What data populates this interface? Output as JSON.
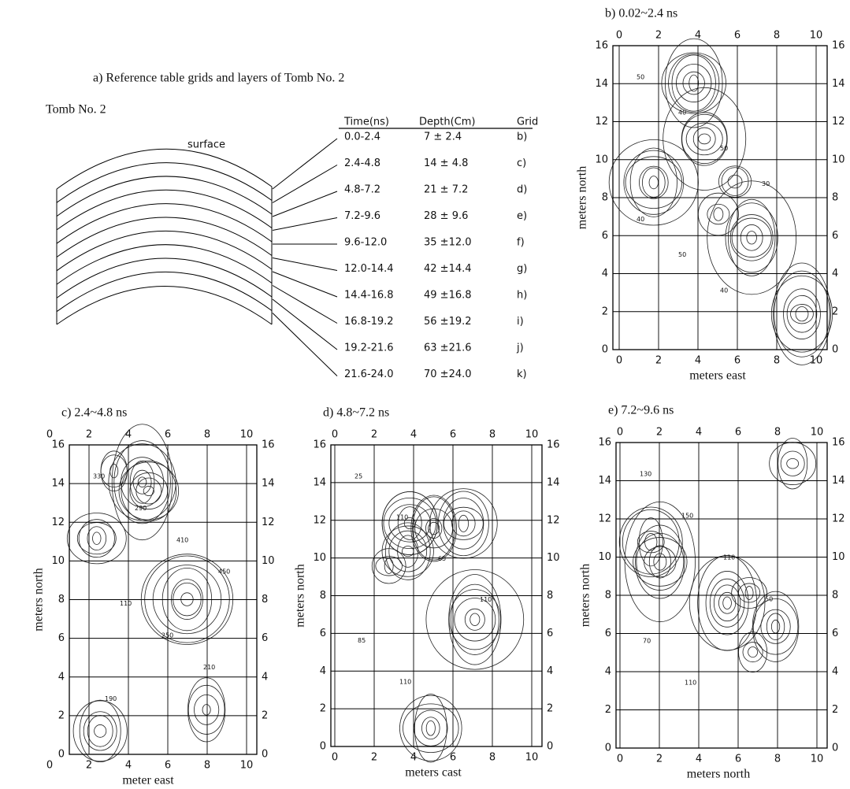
{
  "panel_a": {
    "title": "a) Reference table grids and layers of Tomb No. 2",
    "subtitle": "Tomb No. 2",
    "surface_label": "surface",
    "table": {
      "header": [
        "Time(ns)",
        "Depth(Cm)",
        "Grid"
      ],
      "rows": [
        [
          "0.0-2.4",
          "7 ± 2.4",
          "b)"
        ],
        [
          "2.4-4.8",
          "14 ± 4.8",
          "c)"
        ],
        [
          "4.8-7.2",
          "21 ± 7.2",
          "d)"
        ],
        [
          "7.2-9.6",
          "28 ± 9.6",
          "e)"
        ],
        [
          "9.6-12.0",
          "35 ±12.0",
          "f)"
        ],
        [
          "12.0-14.4",
          "42 ±14.4",
          "g)"
        ],
        [
          "14.4-16.8",
          "49 ±16.8",
          "h)"
        ],
        [
          "16.8-19.2",
          "56 ±19.2",
          "i)"
        ],
        [
          "19.2-21.6",
          "63 ±21.6",
          "j)"
        ],
        [
          "21.6-24.0",
          "70 ±24.0",
          "k)"
        ]
      ]
    }
  },
  "maps": [
    {
      "title": "b) 0.02~2.4 ns",
      "x_label": "meters east",
      "y_label": "meters north",
      "xlim": [
        0,
        10
      ],
      "ylim": [
        0,
        16
      ],
      "xticks": [
        0,
        2,
        4,
        6,
        8,
        10
      ],
      "yticks": [
        0,
        2,
        4,
        6,
        8,
        10,
        12,
        14,
        16
      ],
      "contour_labels": [
        "50",
        "40",
        "50",
        "30",
        "40",
        "50",
        "40"
      ]
    },
    {
      "title": "c) 2.4~4.8 ns",
      "x_label": "meter east",
      "y_label": "meters north",
      "xlim": [
        0,
        10
      ],
      "ylim": [
        0,
        16
      ],
      "xticks": [
        0,
        2,
        4,
        6,
        8,
        10
      ],
      "yticks": [
        0,
        2,
        4,
        6,
        8,
        10,
        12,
        14,
        16
      ],
      "contour_labels": [
        "330",
        "290",
        "410",
        "450",
        "110",
        "250",
        "210",
        "190"
      ]
    },
    {
      "title": "d) 4.8~7.2 ns",
      "x_label": "meters cast",
      "y_label": "meters north",
      "xlim": [
        0,
        10
      ],
      "ylim": [
        0,
        16
      ],
      "xticks": [
        0,
        2,
        4,
        6,
        8,
        10
      ],
      "yticks": [
        0,
        2,
        4,
        6,
        8,
        10,
        12,
        14,
        16
      ],
      "contour_labels": [
        "25",
        "110",
        "65",
        "110",
        "85",
        "110"
      ]
    },
    {
      "title": "e) 7.2~9.6 ns",
      "x_label": "meters north",
      "y_label": "meters north",
      "xlim": [
        0,
        10
      ],
      "ylim": [
        0,
        16
      ],
      "xticks": [
        0,
        2,
        4,
        6,
        8,
        10
      ],
      "yticks": [
        0,
        2,
        4,
        6,
        8,
        10,
        12,
        14,
        16
      ],
      "contour_labels": [
        "130",
        "150",
        "110",
        "50",
        "70",
        "110"
      ]
    }
  ]
}
